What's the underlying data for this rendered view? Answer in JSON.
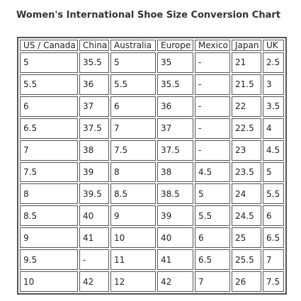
{
  "title": "Women's International Shoe Size Conversion Chart",
  "table": {
    "headers": [
      "US / Canada",
      "China",
      "Australia",
      "Europe",
      "Mexico",
      "Japan",
      "UK"
    ],
    "rows": [
      [
        "5",
        "35.5",
        "5",
        "35",
        "-",
        "21",
        "2.5"
      ],
      [
        "5.5",
        "36",
        "5.5",
        "35.5",
        "-",
        "21.5",
        "3"
      ],
      [
        "6",
        "37",
        "6",
        "36",
        "-",
        "22",
        "3.5"
      ],
      [
        "6.5",
        "37.5",
        "7",
        "37",
        "-",
        "22.5",
        "4"
      ],
      [
        "7",
        "38",
        "7.5",
        "37.5",
        "-",
        "23",
        "4.5"
      ],
      [
        "7.5",
        "39",
        "8",
        "38",
        "4.5",
        "23.5",
        "5"
      ],
      [
        "8",
        "39.5",
        "8.5",
        "38.5",
        "5",
        "24",
        "5.5"
      ],
      [
        "8.5",
        "40",
        "9",
        "39",
        "5.5",
        "24.5",
        "6"
      ],
      [
        "9",
        "41",
        "10",
        "40",
        "6",
        "25",
        "6.5"
      ],
      [
        "9.5",
        "-",
        "11",
        "41",
        "6.5",
        "25.5",
        "7"
      ],
      [
        "10",
        "42",
        "12",
        "42",
        "7",
        "26",
        "7.5"
      ]
    ]
  }
}
